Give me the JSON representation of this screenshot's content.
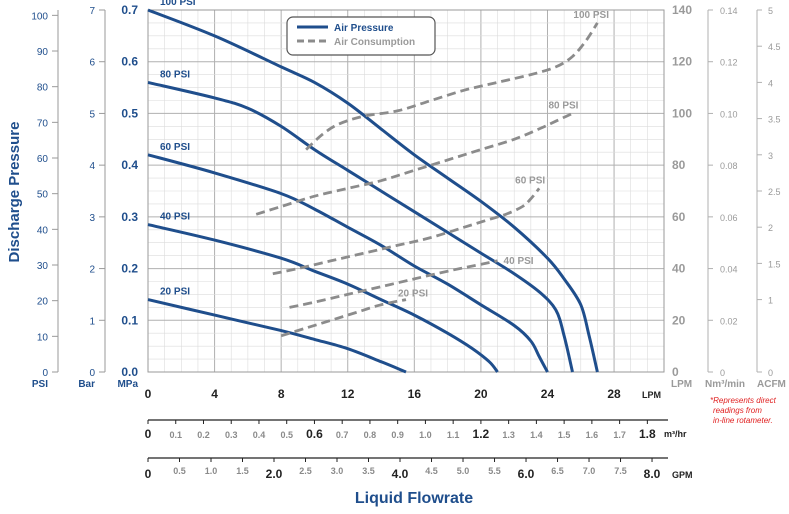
{
  "chart_data": {
    "type": "line",
    "title": "",
    "xlabel": "Liquid Flowrate",
    "ylabel": "Discharge Pressure",
    "colors": {
      "air_pressure": "#1f4e8c",
      "air_consumption": "#8c8c8c",
      "note": "#e02020",
      "grid": "#c8c8c8",
      "left_labels": "#1f4e8c",
      "right_labels": "#9a9a9a"
    },
    "x_axes": {
      "lpm": {
        "unit": "LPM",
        "range": [
          0,
          31.0
        ],
        "ticks": [
          "0",
          "4",
          "8",
          "12",
          "16",
          "20",
          "24",
          "28"
        ],
        "tick_values": [
          0,
          4,
          8,
          12,
          16,
          20,
          24,
          28
        ]
      },
      "m3hr": {
        "unit": "m³/hr",
        "range": [
          0,
          1.86
        ],
        "ticks": [
          "0",
          "0.1",
          "0.2",
          "0.3",
          "0.4",
          "0.5",
          "0.6",
          "0.7",
          "0.8",
          "0.9",
          "1.0",
          "1.1",
          "1.2",
          "1.3",
          "1.4",
          "1.5",
          "1.6",
          "1.7",
          "1.8"
        ],
        "tick_values": [
          0,
          0.1,
          0.2,
          0.3,
          0.4,
          0.5,
          0.6,
          0.7,
          0.8,
          0.9,
          1.0,
          1.1,
          1.2,
          1.3,
          1.4,
          1.5,
          1.6,
          1.7,
          1.8
        ],
        "major": [
          "0",
          "0.6",
          "1.2",
          "1.8"
        ]
      },
      "gpm": {
        "unit": "GPM",
        "range": [
          0,
          8.19
        ],
        "ticks": [
          "0",
          "0.5",
          "1.0",
          "1.5",
          "2.0",
          "2.5",
          "3.0",
          "3.5",
          "4.0",
          "4.5",
          "5.0",
          "5.5",
          "6.0",
          "6.5",
          "7.0",
          "7.5",
          "8.0"
        ],
        "tick_values": [
          0,
          0.5,
          1.0,
          1.5,
          2.0,
          2.5,
          3.0,
          3.5,
          4.0,
          4.5,
          5.0,
          5.5,
          6.0,
          6.5,
          7.0,
          7.5,
          8.0
        ],
        "major": [
          "0",
          "2.0",
          "4.0",
          "6.0",
          "8.0"
        ]
      }
    },
    "y_axes": {
      "psi": {
        "unit": "PSI",
        "range": [
          0,
          101.5
        ],
        "ticks": [
          "0",
          "10",
          "20",
          "30",
          "40",
          "50",
          "60",
          "70",
          "80",
          "90",
          "100"
        ],
        "tick_values": [
          0,
          10,
          20,
          30,
          40,
          50,
          60,
          70,
          80,
          90,
          100
        ]
      },
      "bar": {
        "unit": "Bar",
        "range": [
          0,
          7.0
        ],
        "ticks": [
          "0",
          "1",
          "2",
          "3",
          "4",
          "5",
          "6",
          "7"
        ],
        "tick_values": [
          0,
          1,
          2,
          3,
          4,
          5,
          6,
          7
        ]
      },
      "mpa": {
        "unit": "MPa",
        "range": [
          0,
          0.7
        ],
        "ticks": [
          "0.0",
          "0.1",
          "0.2",
          "0.3",
          "0.4",
          "0.5",
          "0.6",
          "0.7"
        ],
        "tick_values": [
          0,
          0.1,
          0.2,
          0.3,
          0.4,
          0.5,
          0.6,
          0.7
        ]
      },
      "lpm_air": {
        "unit": "LPM",
        "range": [
          0,
          140
        ],
        "ticks": [
          "0",
          "20",
          "40",
          "60",
          "80",
          "100",
          "120",
          "140"
        ],
        "tick_values": [
          0,
          20,
          40,
          60,
          80,
          100,
          120,
          140
        ]
      },
      "nm3min": {
        "unit": "Nm³/min",
        "range": [
          0,
          0.14
        ],
        "ticks": [
          "0",
          "0.02",
          "0.04",
          "0.06",
          "0.08",
          "0.10",
          "0.12",
          "0.14"
        ],
        "tick_values": [
          0,
          0.02,
          0.04,
          0.06,
          0.08,
          0.1,
          0.12,
          0.14
        ]
      },
      "acfm": {
        "unit": "ACFM",
        "range": [
          0,
          5.0
        ],
        "ticks": [
          "0",
          "1",
          "1.5",
          "2",
          "2.5",
          "3",
          "3.5",
          "4",
          "4.5",
          "5"
        ],
        "tick_values": [
          0,
          1,
          1.5,
          2,
          2.5,
          3,
          3.5,
          4,
          4.5,
          5
        ]
      }
    },
    "legend": {
      "position": "top-center",
      "entries": [
        {
          "label": "Air Pressure",
          "style": "solid"
        },
        {
          "label": "Air Consumption",
          "style": "dashed"
        }
      ]
    },
    "series": [
      {
        "name": "100 PSI",
        "kind": "pressure",
        "label": "100 PSI",
        "x": [
          0,
          4,
          8,
          10,
          12,
          14,
          16,
          18,
          20,
          22,
          24,
          25,
          26,
          26.5,
          27.0
        ],
        "y": [
          0.7,
          0.65,
          0.59,
          0.56,
          0.52,
          0.47,
          0.42,
          0.375,
          0.33,
          0.28,
          0.22,
          0.18,
          0.13,
          0.07,
          0.0
        ]
      },
      {
        "name": "80 PSI",
        "kind": "pressure",
        "label": "80 PSI",
        "x": [
          0,
          4,
          6,
          8,
          10,
          12,
          14,
          16,
          18,
          20,
          22,
          23.5,
          24.5,
          25.0,
          25.5
        ],
        "y": [
          0.56,
          0.53,
          0.51,
          0.475,
          0.43,
          0.39,
          0.35,
          0.31,
          0.27,
          0.23,
          0.19,
          0.155,
          0.12,
          0.07,
          0.0
        ]
      },
      {
        "name": "60 PSI",
        "kind": "pressure",
        "label": "60 PSI",
        "x": [
          0,
          4,
          8,
          10,
          12,
          14,
          16,
          18,
          20,
          22,
          23.0,
          23.5,
          24.0
        ],
        "y": [
          0.42,
          0.385,
          0.345,
          0.315,
          0.28,
          0.245,
          0.205,
          0.17,
          0.13,
          0.09,
          0.06,
          0.03,
          0.0
        ]
      },
      {
        "name": "40 PSI",
        "kind": "pressure",
        "label": "40 PSI",
        "x": [
          0,
          4,
          8,
          10,
          12,
          14,
          16,
          18,
          19.5,
          20.5,
          21.0
        ],
        "y": [
          0.285,
          0.255,
          0.22,
          0.195,
          0.17,
          0.14,
          0.11,
          0.075,
          0.045,
          0.02,
          0.0
        ]
      },
      {
        "name": "20 PSI",
        "kind": "pressure",
        "label": "20 PSI",
        "x": [
          0,
          4,
          8,
          10,
          12,
          14,
          15.5
        ],
        "y": [
          0.14,
          0.11,
          0.08,
          0.063,
          0.045,
          0.02,
          0.0
        ]
      },
      {
        "name": "100 PSI",
        "kind": "consumption",
        "label": "100 PSI",
        "x": [
          9.5,
          10.5,
          11.5,
          13.0,
          15.0,
          17.0,
          19.0,
          21.0,
          23.0,
          24.5,
          25.5,
          26.3,
          27.0
        ],
        "y": [
          86,
          92,
          96,
          99,
          101,
          105,
          109,
          112,
          115,
          118,
          122,
          128,
          135
        ]
      },
      {
        "name": "80 PSI",
        "kind": "consumption",
        "label": "80 PSI",
        "x": [
          6.5,
          8,
          10,
          12,
          14,
          16,
          18,
          20,
          22,
          23.5,
          24.5,
          25.5
        ],
        "y": [
          61,
          64,
          68,
          71,
          74,
          78,
          82,
          86,
          90,
          94,
          97,
          100
        ]
      },
      {
        "name": "60 PSI",
        "kind": "consumption",
        "label": "60 PSI",
        "x": [
          7.5,
          9,
          11,
          13,
          15,
          17,
          19,
          20.5,
          21.5,
          22.5,
          23.0,
          23.5
        ],
        "y": [
          38,
          40,
          43,
          46,
          49,
          52,
          56,
          59,
          61,
          64,
          67,
          71
        ]
      },
      {
        "name": "40 PSI",
        "kind": "consumption",
        "label": "40 PSI",
        "x": [
          8.5,
          10,
          12,
          14,
          16,
          18,
          19.5,
          21.0
        ],
        "y": [
          25,
          27,
          30,
          33,
          36,
          39,
          41,
          43
        ]
      },
      {
        "name": "20 PSI",
        "kind": "consumption",
        "label": "20 PSI",
        "x": [
          8,
          9.5,
          11,
          12.5,
          14,
          15.5
        ],
        "y": [
          14,
          17,
          20,
          23,
          26,
          28
        ]
      }
    ],
    "note_lines": [
      "*Represents direct",
      "readings from",
      "in-line rotameter."
    ]
  }
}
